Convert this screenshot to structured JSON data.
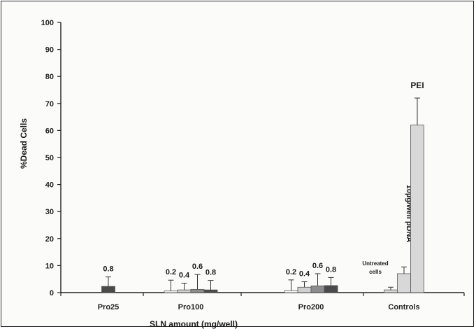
{
  "chart_data": {
    "type": "bar",
    "title": "",
    "xlabel": "SLN amount (mg/well)",
    "ylabel": "%Dead Cells",
    "ylim": [
      0,
      100
    ],
    "yticks": [
      "0",
      "10",
      "20",
      "30",
      "40",
      "50",
      "60",
      "70",
      "80",
      "90",
      "100"
    ],
    "grid": false,
    "groups": [
      {
        "label": "Pro25",
        "bars": [
          {
            "label": "0.8",
            "value": 2.3,
            "error": 3.5,
            "color": "#4a4a4a"
          }
        ]
      },
      {
        "label": "Pro100",
        "bars": [
          {
            "label": "0.2",
            "value": 0.6,
            "error": 4.0,
            "color": "#ffffff"
          },
          {
            "label": "0.4",
            "value": 1.0,
            "error": 2.5,
            "color": "#d0d0d0"
          },
          {
            "label": "0.6",
            "value": 1.2,
            "error": 5.5,
            "color": "#8c8c8c"
          },
          {
            "label": "0.8",
            "value": 1.0,
            "error": 3.5,
            "color": "#4a4a4a"
          }
        ]
      },
      {
        "label": "Pro200",
        "bars": [
          {
            "label": "0.2",
            "value": 0.7,
            "error": 4.0,
            "color": "#ffffff"
          },
          {
            "label": "0.4",
            "value": 2.0,
            "error": 2.0,
            "color": "#d0d0d0"
          },
          {
            "label": "0.6",
            "value": 2.5,
            "error": 4.5,
            "color": "#8c8c8c"
          },
          {
            "label": "0.8",
            "value": 2.6,
            "error": 3.0,
            "color": "#4a4a4a"
          }
        ]
      },
      {
        "label": "Controls",
        "bars": [
          {
            "label": "Untreated cells",
            "value": 1.0,
            "error": 1.0,
            "color": "#d8d8d8"
          },
          {
            "label": "10µg/well pDNA",
            "value": 7.0,
            "error": 2.5,
            "color": "#d8d8d8"
          },
          {
            "label": "PEI",
            "value": 62.0,
            "error": 10.0,
            "color": "#d8d8d8"
          }
        ]
      }
    ],
    "colors": {
      "axis": "#222222",
      "frame": "#2a2a2a",
      "background": "#fbfbfa"
    }
  }
}
